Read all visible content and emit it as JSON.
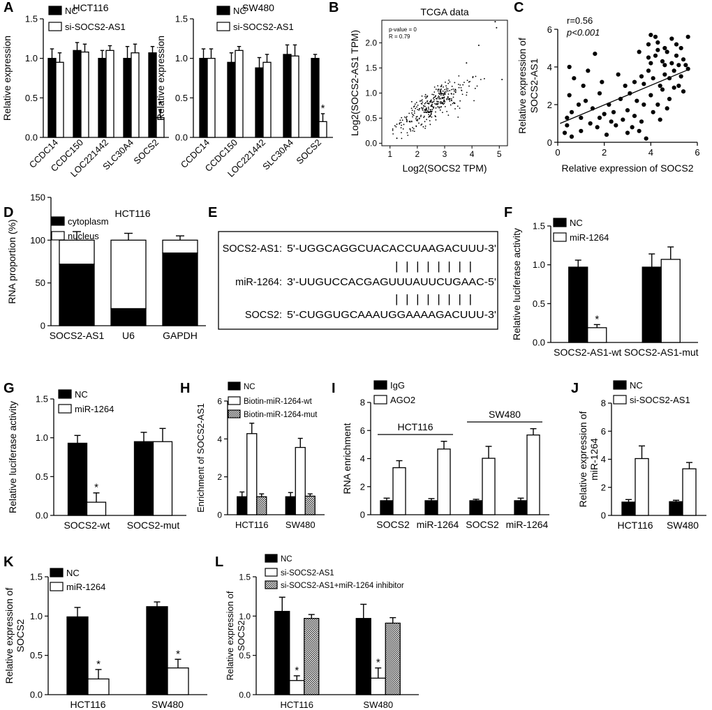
{
  "colors": {
    "black": "#000000",
    "white": "#ffffff",
    "hatch": "#9a9a9a"
  },
  "chart_data": [
    {
      "id": "A1",
      "letter": "A",
      "type": "bar",
      "title": "HCT116",
      "ylabel": "Relative expression",
      "ylim": [
        0,
        1.5
      ],
      "yticks": [
        "0.0",
        "0.5",
        "1.0",
        "1.5"
      ],
      "categories": [
        "CCDC14",
        "CCDC150",
        "LOC221442",
        "SLC30A4",
        "SOCS2"
      ],
      "series": [
        {
          "name": "NC",
          "fill": "black",
          "values": [
            1.0,
            1.1,
            1.0,
            1.0,
            1.07
          ],
          "errors": [
            0.12,
            0.1,
            0.1,
            0.15,
            0.08
          ]
        },
        {
          "name": "si-SOCS2-AS1",
          "fill": "white",
          "values": [
            0.95,
            1.08,
            1.1,
            1.07,
            0.25
          ],
          "errors": [
            0.12,
            0.1,
            0.06,
            0.11,
            0.1
          ]
        }
      ],
      "annotations": [
        {
          "category": 4,
          "series": 1,
          "text": "*"
        }
      ]
    },
    {
      "id": "A2",
      "letter": "",
      "type": "bar",
      "title": "SW480",
      "ylabel": "Relative expression",
      "ylim": [
        0,
        1.5
      ],
      "yticks": [
        "0.0",
        "0.5",
        "1.0",
        "1.5"
      ],
      "categories": [
        "CCDC14",
        "CCDC150",
        "LOC221442",
        "SLC30A4",
        "SOCS2"
      ],
      "series": [
        {
          "name": "NC",
          "fill": "black",
          "values": [
            1.0,
            0.95,
            0.88,
            1.05,
            1.0
          ],
          "errors": [
            0.12,
            0.12,
            0.13,
            0.12,
            0.05
          ]
        },
        {
          "name": "si-SOCS2-AS1",
          "fill": "white",
          "values": [
            1.0,
            1.1,
            0.95,
            1.03,
            0.2
          ],
          "errors": [
            0.12,
            0.05,
            0.1,
            0.14,
            0.1
          ]
        }
      ],
      "annotations": [
        {
          "category": 4,
          "series": 1,
          "text": "*"
        }
      ]
    },
    {
      "id": "B",
      "letter": "B",
      "type": "scatter",
      "title": "TCGA data",
      "xlabel": "Log2(SOCS2 TPM)",
      "ylabel": "Log2(SOCS2-AS1 TPM)",
      "xlim": [
        0.7,
        5.3
      ],
      "ylim": [
        -0.05,
        2.45
      ],
      "xticks": [
        "1",
        "2",
        "3",
        "4",
        "5"
      ],
      "yticks": [
        "0.0",
        "0.5",
        "1.0",
        "1.5",
        "2.0"
      ],
      "stats": [
        "p-value = 0",
        "R = 0.79"
      ],
      "trend": {
        "slope": 0.31,
        "intercept": -0.05,
        "noise": 0.19,
        "n": 330,
        "xmean": 2.6,
        "xsd": 0.65
      },
      "outliers": [
        [
          4.85,
          2.42
        ],
        [
          4.9,
          2.3
        ],
        [
          5.1,
          1.27
        ],
        [
          4.25,
          1.95
        ],
        [
          3.8,
          1.6
        ],
        [
          1.25,
          0.1
        ]
      ]
    },
    {
      "id": "C",
      "letter": "C",
      "type": "scatter",
      "xlabel": "Relative expression of SOCS2",
      "ylabel": "Relative expression of SOCS2-AS1",
      "xlim": [
        0,
        6
      ],
      "ylim": [
        0,
        6
      ],
      "xticks": [
        "0",
        "2",
        "4",
        "6"
      ],
      "yticks": [
        "0",
        "2",
        "4",
        "6"
      ],
      "stats": [
        "r=0.56",
        "p<0.001"
      ],
      "fit": [
        [
          0.1,
          1.0
        ],
        [
          5.6,
          3.85
        ]
      ],
      "points": [
        [
          0.3,
          0.5
        ],
        [
          0.4,
          0.9
        ],
        [
          0.4,
          1.3
        ],
        [
          0.5,
          2.5
        ],
        [
          0.5,
          4.0
        ],
        [
          0.6,
          0.3
        ],
        [
          0.6,
          1.6
        ],
        [
          0.7,
          3.4
        ],
        [
          0.9,
          2.0
        ],
        [
          1.0,
          1.3
        ],
        [
          1.0,
          0.6
        ],
        [
          1.1,
          3.0
        ],
        [
          1.2,
          2.2
        ],
        [
          1.3,
          3.8
        ],
        [
          1.4,
          1.0
        ],
        [
          1.5,
          1.8
        ],
        [
          1.6,
          4.7
        ],
        [
          1.7,
          0.8
        ],
        [
          1.8,
          2.6
        ],
        [
          1.8,
          1.3
        ],
        [
          1.9,
          3.2
        ],
        [
          2.0,
          1.5
        ],
        [
          2.1,
          0.4
        ],
        [
          2.2,
          2.0
        ],
        [
          2.3,
          1.1
        ],
        [
          2.4,
          1.6
        ],
        [
          2.5,
          0.9
        ],
        [
          2.6,
          3.6
        ],
        [
          2.7,
          2.3
        ],
        [
          2.8,
          1.2
        ],
        [
          2.9,
          3.0
        ],
        [
          3.0,
          0.5
        ],
        [
          3.0,
          1.7
        ],
        [
          3.1,
          2.6
        ],
        [
          3.2,
          0.8
        ],
        [
          3.3,
          3.2
        ],
        [
          3.3,
          1.4
        ],
        [
          3.4,
          2.2
        ],
        [
          3.5,
          0.6
        ],
        [
          3.5,
          4.8
        ],
        [
          3.6,
          1.1
        ],
        [
          3.7,
          2.0
        ],
        [
          3.7,
          3.1
        ],
        [
          3.8,
          0.2
        ],
        [
          3.9,
          5.2
        ],
        [
          3.9,
          3.8
        ],
        [
          4.0,
          4.2
        ],
        [
          4.0,
          2.5
        ],
        [
          4.0,
          5.7
        ],
        [
          4.1,
          1.6
        ],
        [
          4.1,
          3.4
        ],
        [
          4.2,
          4.6
        ],
        [
          4.2,
          5.6
        ],
        [
          4.3,
          2.0
        ],
        [
          4.3,
          5.3
        ],
        [
          4.4,
          3.0
        ],
        [
          4.4,
          1.2
        ],
        [
          4.5,
          4.3
        ],
        [
          4.5,
          2.8
        ],
        [
          4.6,
          3.6
        ],
        [
          4.6,
          5.0
        ],
        [
          4.7,
          1.8
        ],
        [
          4.7,
          4.8
        ],
        [
          4.8,
          3.4
        ],
        [
          4.8,
          2.3
        ],
        [
          4.9,
          5.5
        ],
        [
          4.9,
          4.2
        ],
        [
          5.0,
          2.9
        ],
        [
          5.0,
          3.8
        ],
        [
          5.1,
          4.6
        ],
        [
          5.1,
          5.2
        ],
        [
          5.2,
          3.0
        ],
        [
          5.2,
          4.1
        ],
        [
          5.3,
          5.0
        ],
        [
          5.3,
          3.5
        ],
        [
          5.4,
          4.4
        ],
        [
          5.4,
          2.7
        ],
        [
          5.5,
          4.1
        ],
        [
          5.6,
          3.9
        ],
        [
          5.6,
          5.6
        ],
        [
          4.3,
          4.9
        ],
        [
          4.6,
          4.1
        ],
        [
          3.6,
          3.5
        ],
        [
          3.9,
          4.5
        ]
      ]
    },
    {
      "id": "D",
      "letter": "D",
      "type": "bar",
      "title": "HCT116",
      "stacked": true,
      "ylabel": "RNA proportion (%)",
      "ylim": [
        0,
        150
      ],
      "yticks": [
        "0",
        "50",
        "100",
        "150"
      ],
      "categories": [
        "SOCS2-AS1",
        "U6",
        "GAPDH"
      ],
      "series": [
        {
          "name": "cytoplasm",
          "fill": "black",
          "values": [
            72,
            20,
            85
          ],
          "errors": [
            10,
            8,
            5
          ]
        },
        {
          "name": "nucleus",
          "fill": "white",
          "values": [
            28,
            80,
            15
          ],
          "errors": [
            10,
            8,
            5
          ]
        }
      ],
      "annotations": []
    },
    {
      "id": "F",
      "letter": "F",
      "type": "bar",
      "ylabel": "Relative luciferase activity",
      "ylim": [
        0,
        1.5
      ],
      "yticks": [
        "0.0",
        "0.5",
        "1.0",
        "1.5"
      ],
      "categories": [
        "SOCS2-AS1-wt",
        "SOCS2-AS1-mut"
      ],
      "series": [
        {
          "name": "NC",
          "fill": "black",
          "values": [
            0.97,
            0.97
          ],
          "errors": [
            0.09,
            0.17
          ]
        },
        {
          "name": "miR-1264",
          "fill": "white",
          "values": [
            0.19,
            1.07
          ],
          "errors": [
            0.04,
            0.16
          ]
        }
      ],
      "annotations": [
        {
          "category": 0,
          "series": 1,
          "text": "*"
        }
      ]
    },
    {
      "id": "G",
      "letter": "G",
      "type": "bar",
      "ylabel": "Relative luciferase activity",
      "ylim": [
        0,
        1.5
      ],
      "yticks": [
        "0.0",
        "0.5",
        "1.0",
        "1.5"
      ],
      "categories": [
        "SOCS2-wt",
        "SOCS2-mut"
      ],
      "series": [
        {
          "name": "NC",
          "fill": "black",
          "values": [
            0.93,
            0.95
          ],
          "errors": [
            0.1,
            0.12
          ]
        },
        {
          "name": "miR-1264",
          "fill": "white",
          "values": [
            0.17,
            0.95
          ],
          "errors": [
            0.12,
            0.17
          ]
        }
      ],
      "annotations": [
        {
          "category": 0,
          "series": 1,
          "text": "*"
        }
      ]
    },
    {
      "id": "H",
      "letter": "H",
      "type": "bar",
      "ylabel": "Enrichment of SOCS2-AS1",
      "ylim": [
        0,
        6
      ],
      "yticks": [
        "0",
        "2",
        "4",
        "6"
      ],
      "categories": [
        "HCT116",
        "SW480"
      ],
      "series": [
        {
          "name": "NC",
          "fill": "black",
          "values": [
            0.95,
            0.95
          ],
          "errors": [
            0.25,
            0.22
          ]
        },
        {
          "name": "Biotin-miR-1264-wt",
          "fill": "white",
          "values": [
            4.28,
            3.55
          ],
          "errors": [
            0.55,
            0.48
          ]
        },
        {
          "name": "Biotin-miR-1264-mut",
          "fill": "hatch",
          "values": [
            0.95,
            0.98
          ],
          "errors": [
            0.15,
            0.12
          ]
        }
      ],
      "annotations": []
    },
    {
      "id": "I",
      "letter": "I",
      "type": "bar",
      "ylabel": "RNA enrichment",
      "ylim": [
        0,
        8
      ],
      "yticks": [
        "0",
        "2",
        "4",
        "6",
        "8"
      ],
      "categories": [
        "SOCS2",
        "miR-1264",
        "SOCS2",
        "miR-1264"
      ],
      "groups": [
        {
          "label": "HCT116",
          "span": [
            0,
            1
          ]
        },
        {
          "label": "SW480",
          "span": [
            2,
            3
          ]
        }
      ],
      "series": [
        {
          "name": "IgG",
          "fill": "black",
          "values": [
            1.0,
            1.0,
            1.0,
            1.0
          ],
          "errors": [
            0.18,
            0.15,
            0.1,
            0.18
          ]
        },
        {
          "name": "AGO2",
          "fill": "white",
          "values": [
            3.35,
            4.68,
            4.02,
            5.68
          ],
          "errors": [
            0.5,
            0.55,
            0.85,
            0.45
          ]
        }
      ],
      "annotations": []
    },
    {
      "id": "J",
      "letter": "J",
      "type": "bar",
      "ylabel": "Relative expression of miR-1264",
      "ylim": [
        0,
        8
      ],
      "yticks": [
        "0",
        "2",
        "4",
        "6",
        "8"
      ],
      "categories": [
        "HCT116",
        "SW480"
      ],
      "series": [
        {
          "name": "NC",
          "fill": "black",
          "values": [
            0.95,
            0.98
          ],
          "errors": [
            0.18,
            0.1
          ]
        },
        {
          "name": "si-SOCS2-AS1",
          "fill": "white",
          "values": [
            4.05,
            3.32
          ],
          "errors": [
            0.9,
            0.45
          ]
        }
      ],
      "annotations": []
    },
    {
      "id": "K",
      "letter": "K",
      "type": "bar",
      "ylabel": "Relative expression of SOCS2",
      "ylim": [
        0,
        1.5
      ],
      "yticks": [
        "0.0",
        "0.5",
        "1.0",
        "1.5"
      ],
      "categories": [
        "HCT116",
        "SW480"
      ],
      "series": [
        {
          "name": "NC",
          "fill": "black",
          "values": [
            0.99,
            1.12
          ],
          "errors": [
            0.12,
            0.06
          ]
        },
        {
          "name": "miR-1264",
          "fill": "white",
          "values": [
            0.2,
            0.34
          ],
          "errors": [
            0.12,
            0.11
          ]
        }
      ],
      "annotations": [
        {
          "category": 0,
          "series": 1,
          "text": "*"
        },
        {
          "category": 1,
          "series": 1,
          "text": "*"
        }
      ]
    },
    {
      "id": "L",
      "letter": "L",
      "type": "bar",
      "ylabel": "Relative expression of SOCS2",
      "ylim": [
        0,
        1.5
      ],
      "yticks": [
        "0.0",
        "0.5",
        "1.0",
        "1.5"
      ],
      "categories": [
        "HCT116",
        "SW480"
      ],
      "series": [
        {
          "name": "NC",
          "fill": "black",
          "values": [
            1.06,
            0.97
          ],
          "errors": [
            0.18,
            0.18
          ]
        },
        {
          "name": "si-SOCS2-AS1",
          "fill": "white",
          "values": [
            0.18,
            0.21
          ],
          "errors": [
            0.06,
            0.13
          ]
        },
        {
          "name": "si-SOCS2-AS1+miR-1264 inhibitor",
          "fill": "hatch",
          "values": [
            0.97,
            0.91
          ],
          "errors": [
            0.05,
            0.07
          ]
        }
      ],
      "annotations": [
        {
          "category": 0,
          "series": 1,
          "text": "*"
        },
        {
          "category": 1,
          "series": 1,
          "text": "*"
        }
      ]
    }
  ],
  "panel_e": {
    "letter": "E",
    "rows": [
      {
        "label": "SOCS2-AS1:",
        "seq": "5'-UGGCAGGCUACACCUAAGACUUU-3'"
      },
      {
        "label": "miR-1264:",
        "seq": "3'-UUGUCCACGAGUUUAUUCUGAAC-5'"
      },
      {
        "label": "SOCS2:",
        "seq": "5'-CUGGUGCAAAUGGAAAAGACUUU-3'"
      }
    ],
    "pairs": "||||||||"
  }
}
